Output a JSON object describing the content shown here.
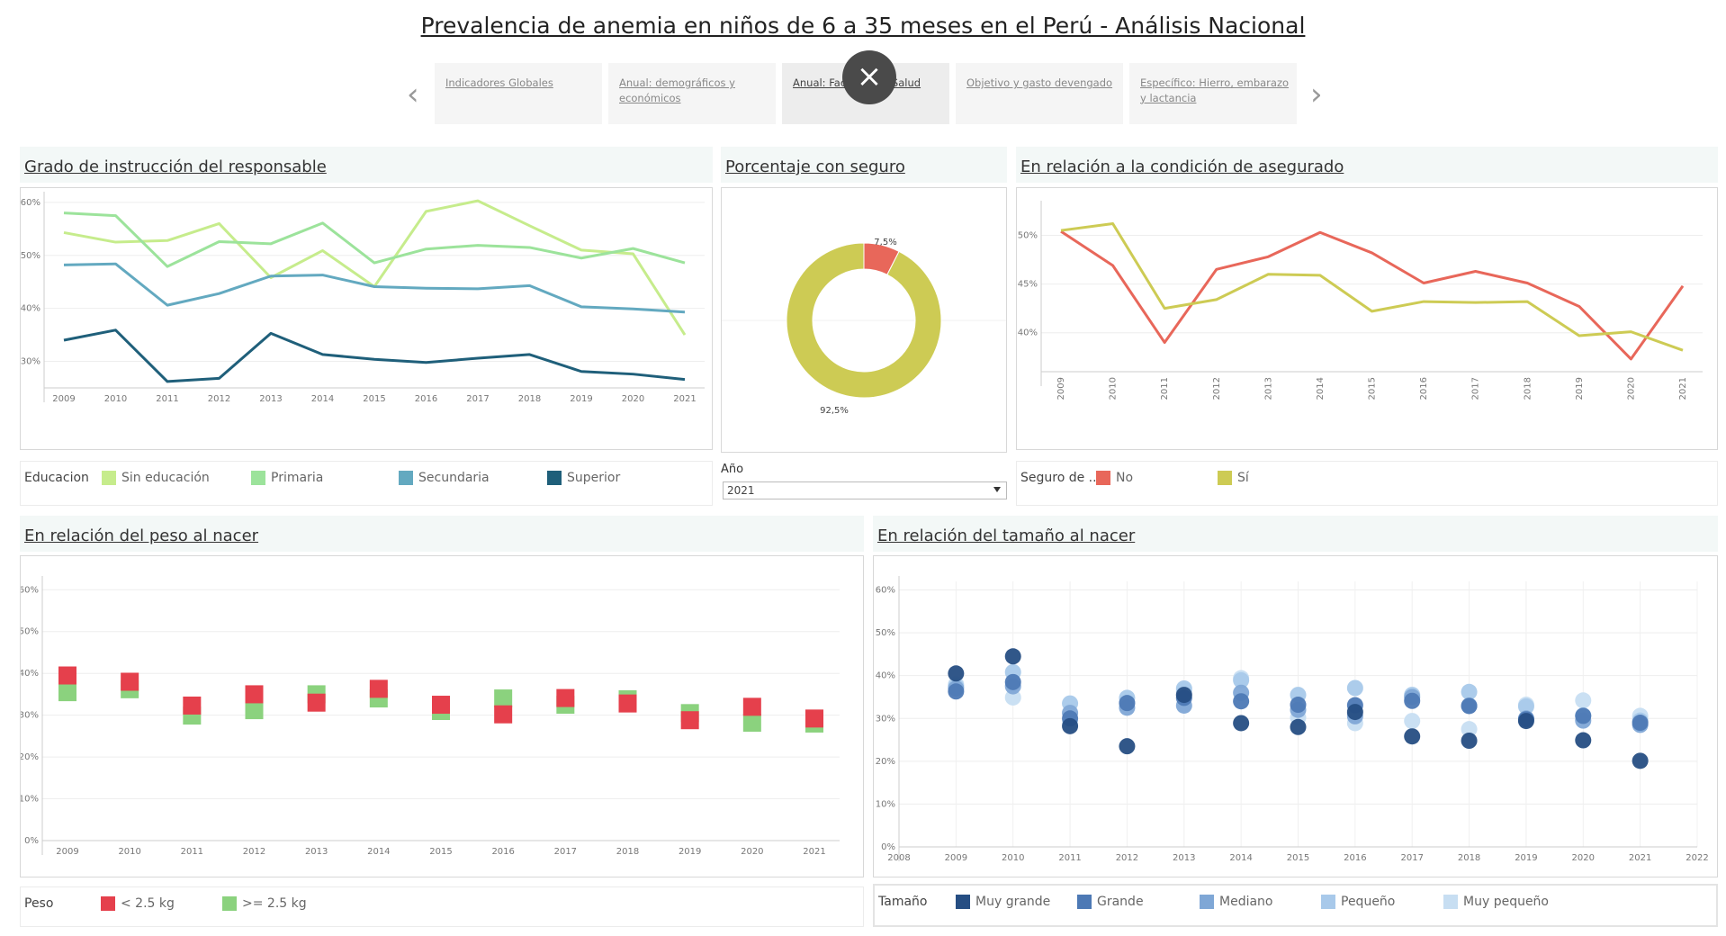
{
  "header": {
    "title": "Prevalencia de anemia en niños de 6 a 35 meses en el Perú - Análisis Nacional"
  },
  "tabs": [
    {
      "label": "Indicadores Globales",
      "active": false
    },
    {
      "label": "Anual: demográficos y económicos",
      "active": false
    },
    {
      "label": "Anual: Factores de Salud",
      "active": true
    },
    {
      "label": "Objetivo y gasto devengado",
      "active": false
    },
    {
      "label": "Específico: Hierro, embarazo y lactancia",
      "active": false
    }
  ],
  "controls": {
    "close_glyph": "×",
    "prev_glyph": "‹",
    "next_glyph": "›"
  },
  "panels": {
    "educ": {
      "title": "Grado de instrucción del responsable"
    },
    "seguro": {
      "title": "Porcentaje con seguro"
    },
    "asegurado": {
      "title": "En relación a la condición de asegurado"
    },
    "peso": {
      "title": "En relación del peso al nacer"
    },
    "tamano": {
      "title": "En relación del tamaño al nacer "
    }
  },
  "legends": {
    "educ": {
      "title": "Educacion",
      "items": [
        "Sin educación",
        "Primaria",
        "Secundaria",
        "Superior"
      ],
      "colors": [
        "#c6ec8c",
        "#9ce39b",
        "#63a9c0",
        "#1f5f7a"
      ]
    },
    "seguro": {
      "title": "Seguro de ...",
      "items": [
        "No",
        "Sí"
      ],
      "colors": [
        "#e8675a",
        "#cdcb54"
      ]
    },
    "peso": {
      "title": "Peso",
      "items": [
        "< 2.5 kg",
        ">= 2.5 kg"
      ],
      "colors": [
        "#e5404c",
        "#8bd27e"
      ]
    },
    "tamano": {
      "title": "Tamaño",
      "items": [
        "Muy grande",
        "Grande",
        "Mediano",
        "Pequeño",
        "Muy pequeño"
      ],
      "colors": [
        "#264e83",
        "#4d79b5",
        "#7fa7d6",
        "#a8c9ea",
        "#c7def2"
      ]
    }
  },
  "filter": {
    "label": "Año",
    "value": "2021"
  },
  "chart_data": [
    {
      "id": "educ",
      "type": "line",
      "x": [
        2009,
        2010,
        2011,
        2012,
        2013,
        2014,
        2015,
        2016,
        2017,
        2018,
        2019,
        2020,
        2021
      ],
      "ylim": [
        25,
        61
      ],
      "yticks": [
        30,
        40,
        50,
        60
      ],
      "tick_suffix": "%",
      "series": [
        {
          "name": "Sin educación",
          "values": [
            54.3,
            52.5,
            52.8,
            56.0,
            45.8,
            50.9,
            44.1,
            58.3,
            60.3,
            55.6,
            51.0,
            50.3,
            35.0
          ]
        },
        {
          "name": "Primaria",
          "values": [
            58.0,
            57.5,
            47.9,
            52.6,
            52.2,
            56.1,
            48.6,
            51.2,
            51.9,
            51.5,
            49.5,
            51.3,
            48.6
          ]
        },
        {
          "name": "Secundaria",
          "values": [
            48.2,
            48.4,
            40.6,
            42.8,
            46.1,
            46.3,
            44.1,
            43.8,
            43.7,
            44.3,
            40.3,
            39.9,
            39.3
          ]
        },
        {
          "name": "Superior",
          "values": [
            34.0,
            35.9,
            26.2,
            26.8,
            35.3,
            31.3,
            30.4,
            29.8,
            30.6,
            31.3,
            28.1,
            27.6,
            26.6
          ]
        }
      ]
    },
    {
      "id": "seguro",
      "type": "pie",
      "labels": [
        "No",
        "Sí"
      ],
      "values": [
        7.5,
        92.5
      ],
      "value_labels": [
        "7,5%",
        "92,5%"
      ]
    },
    {
      "id": "asegurado",
      "type": "line",
      "x": [
        2009,
        2010,
        2011,
        2012,
        2013,
        2014,
        2015,
        2016,
        2017,
        2018,
        2019,
        2020,
        2021
      ],
      "ylim": [
        36,
        53
      ],
      "yticks": [
        40,
        45,
        50
      ],
      "tick_suffix": "%",
      "series": [
        {
          "name": "No",
          "values": [
            50.4,
            46.9,
            39.0,
            46.5,
            47.8,
            50.3,
            48.2,
            45.1,
            46.3,
            45.1,
            42.7,
            37.3,
            44.8
          ]
        },
        {
          "name": "Sí",
          "values": [
            50.5,
            51.2,
            42.5,
            43.4,
            46.0,
            45.9,
            42.2,
            43.2,
            43.1,
            43.2,
            39.7,
            40.1,
            38.2
          ]
        }
      ]
    },
    {
      "id": "peso",
      "type": "scatter",
      "x": [
        2009,
        2010,
        2011,
        2012,
        2013,
        2014,
        2015,
        2016,
        2017,
        2018,
        2019,
        2020,
        2021
      ],
      "ylim": [
        0,
        62
      ],
      "yticks": [
        0,
        10,
        20,
        30,
        40,
        50,
        60
      ],
      "tick_suffix": "%",
      "series": [
        {
          "name": ">= 2.5 kg",
          "values": [
            35.5,
            36.2,
            29.9,
            31.2,
            35.0,
            34.0,
            31.0,
            34.0,
            32.5,
            33.8,
            30.5,
            28.2,
            28.0
          ]
        },
        {
          "name": "< 2.5 kg",
          "values": [
            39.5,
            38.0,
            32.3,
            35.0,
            33.0,
            36.3,
            32.5,
            30.2,
            34.1,
            32.8,
            28.8,
            32.0,
            29.2
          ]
        }
      ]
    },
    {
      "id": "tamano",
      "type": "scatter",
      "x": [
        2009,
        2010,
        2011,
        2012,
        2013,
        2014,
        2015,
        2016,
        2017,
        2018,
        2019,
        2020,
        2021
      ],
      "xlim": [
        2008,
        2022
      ],
      "xticks": [
        2008,
        2009,
        2010,
        2011,
        2012,
        2013,
        2014,
        2015,
        2016,
        2017,
        2018,
        2019,
        2020,
        2021,
        2022
      ],
      "ylim": [
        0,
        62
      ],
      "yticks": [
        0,
        10,
        20,
        30,
        40,
        50,
        60
      ],
      "tick_suffix": "%",
      "series": [
        {
          "name": "Muy pequeño",
          "values": [
            38.0,
            34.9,
            28.9,
            33.6,
            36.5,
            39.4,
            30.2,
            28.9,
            29.4,
            27.5,
            33.2,
            34.2,
            30.6
          ]
        },
        {
          "name": "Pequeño",
          "values": [
            37.5,
            40.8,
            33.5,
            34.8,
            37.0,
            38.9,
            35.5,
            37.1,
            35.5,
            36.2,
            32.8,
            30.7,
            29.5
          ]
        },
        {
          "name": "Mediano",
          "values": [
            37.0,
            37.5,
            31.3,
            32.5,
            33.0,
            36.0,
            32.0,
            30.5,
            35.0,
            33.0,
            30.0,
            29.5,
            28.5
          ]
        },
        {
          "name": "Grande",
          "values": [
            36.3,
            38.5,
            30.0,
            33.6,
            34.8,
            34.0,
            33.2,
            33.1,
            34.1,
            32.9,
            29.8,
            30.6,
            29.0
          ]
        },
        {
          "name": "Muy grande",
          "values": [
            40.5,
            44.5,
            28.2,
            23.5,
            35.5,
            28.9,
            28.0,
            31.5,
            25.8,
            24.8,
            29.4,
            24.9,
            20.1
          ]
        }
      ]
    }
  ]
}
